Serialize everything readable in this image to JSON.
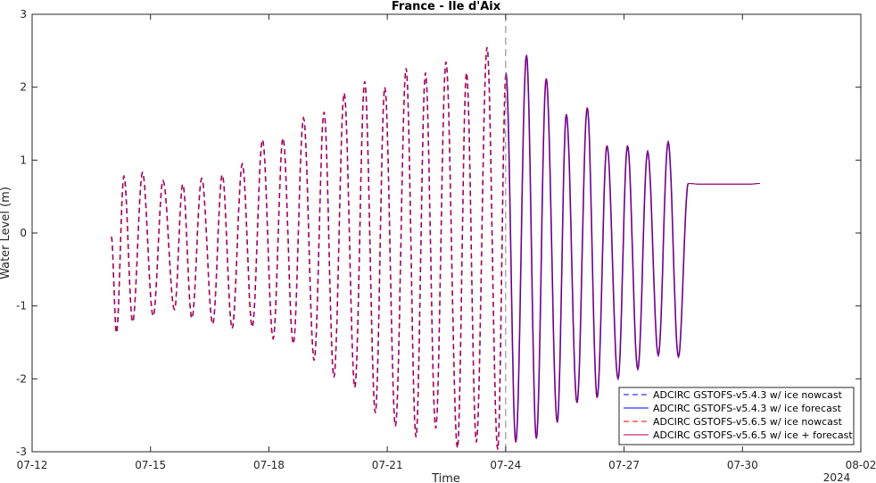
{
  "chart_data": {
    "type": "line",
    "title": "France - Ile d'Aix",
    "xlabel": "Time",
    "ylabel": "Water Level (m)",
    "x_year_label": "2024",
    "xlim_days": [
      12,
      33
    ],
    "x_ticks": [
      {
        "day": 12,
        "label": "07-12"
      },
      {
        "day": 15,
        "label": "07-15"
      },
      {
        "day": 18,
        "label": "07-18"
      },
      {
        "day": 21,
        "label": "07-21"
      },
      {
        "day": 24,
        "label": "07-24"
      },
      {
        "day": 27,
        "label": "07-27"
      },
      {
        "day": 30,
        "label": "07-30"
      },
      {
        "day": 33,
        "label": "08-02"
      }
    ],
    "ylim": [
      -3,
      3
    ],
    "y_ticks": [
      {
        "value": 3,
        "label": "3"
      },
      {
        "value": 2,
        "label": "2"
      },
      {
        "value": 1,
        "label": "1"
      },
      {
        "value": 0,
        "label": "0"
      },
      {
        "value": -1,
        "label": "-1"
      },
      {
        "value": -2,
        "label": "-2"
      },
      {
        "value": -3,
        "label": "-3"
      }
    ],
    "nowcast_forecast_boundary_day": 24,
    "legend_position": "bottom-right",
    "grid": false,
    "series": [
      {
        "name": "ADCIRC GSTOFS-v5.4.3 w/ ice nowcast",
        "color": "#0000ff",
        "style": "dashed",
        "x_range": [
          14,
          24
        ]
      },
      {
        "name": "ADCIRC GSTOFS-v5.4.3 w/ ice forecast",
        "color": "#0000ff",
        "style": "solid",
        "x_range": [
          24,
          31
        ]
      },
      {
        "name": "ADCIRC GSTOFS-v5.6.5 w/ ice nowcast",
        "color": "#ff0000",
        "style": "dashed",
        "x_range": [
          14,
          24
        ]
      },
      {
        "name": "ADCIRC GSTOFS-v5.6.5 w/ ice + forecast",
        "color": "#b0004a",
        "style": "solid",
        "x_range": [
          24,
          30.9
        ]
      }
    ],
    "extrema_days": [
      14.0,
      14.13,
      14.32,
      14.54,
      14.79,
      15.06,
      15.31,
      15.6,
      15.81,
      16.04,
      16.29,
      16.57,
      16.81,
      17.06,
      17.32,
      17.57,
      17.83,
      18.1,
      18.35,
      18.61,
      18.87,
      19.14,
      19.39,
      19.64,
      19.9,
      20.17,
      20.42,
      20.69,
      20.93,
      21.2,
      21.47,
      21.72,
      21.96,
      22.22,
      22.48,
      22.77,
      23.0,
      23.25,
      23.52,
      23.79,
      24.0,
      24.25,
      24.52,
      24.77,
      25.02,
      25.3,
      25.53,
      25.8,
      26.06,
      26.31,
      26.56,
      26.84,
      27.08,
      27.34,
      27.59,
      27.86,
      28.11,
      28.37,
      28.62,
      28.92,
      29.13,
      29.41,
      29.66,
      29.92,
      30.17,
      30.43,
      30.66,
      30.91
    ],
    "extrema_values": [
      -0.05,
      -1.37,
      0.78,
      -1.22,
      0.83,
      -1.14,
      0.72,
      -1.05,
      0.67,
      -1.17,
      0.75,
      -1.25,
      0.8,
      -1.31,
      0.95,
      -1.29,
      1.28,
      -1.45,
      1.3,
      -1.52,
      1.58,
      -1.75,
      1.66,
      -1.98,
      1.92,
      -2.12,
      2.08,
      -2.47,
      2.0,
      -2.65,
      2.26,
      -2.8,
      2.2,
      -2.68,
      2.35,
      -2.95,
      2.2,
      -2.87,
      2.55,
      -2.97,
      2.2,
      -2.87,
      2.44,
      -2.82,
      2.12,
      -2.6,
      1.63,
      -2.33,
      1.72,
      -2.26,
      1.2,
      -2.0,
      1.2,
      -1.87,
      1.12,
      -1.68,
      1.25,
      -1.7,
      0.68,
      0.67,
      0.67,
      0.67,
      0.67,
      0.67,
      0.67,
      0.68
    ]
  },
  "legend": {
    "items": [
      {
        "label": "ADCIRC GSTOFS-v5.4.3 w/ ice nowcast",
        "color": "#0000ff",
        "style": "dashed"
      },
      {
        "label": "ADCIRC GSTOFS-v5.4.3 w/ ice forecast",
        "color": "#0000ff",
        "style": "solid"
      },
      {
        "label": "ADCIRC GSTOFS-v5.6.5 w/ ice nowcast",
        "color": "#ff0000",
        "style": "dashed"
      },
      {
        "label": "ADCIRC GSTOFS-v5.6.5 w/ ice + forecast",
        "color": "#b0004a",
        "style": "solid"
      }
    ]
  }
}
